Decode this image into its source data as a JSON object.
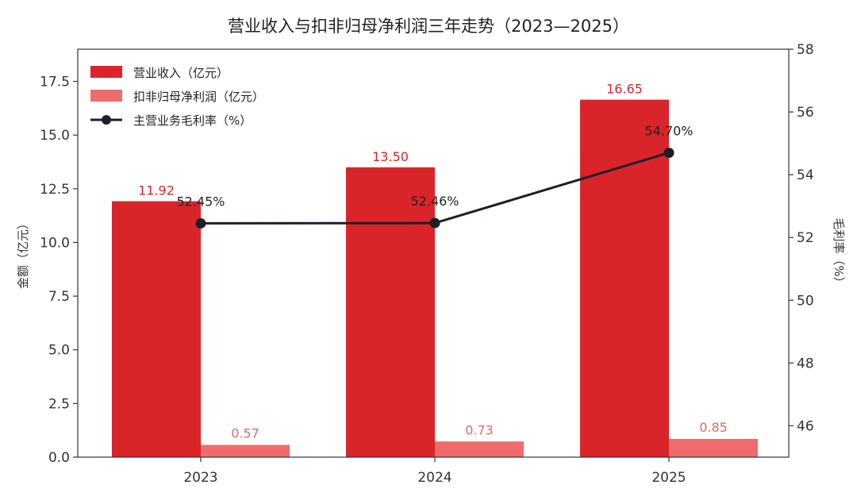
{
  "chart_data": {
    "type": "bar",
    "title": "营业收入与扣非归母净利润三年走势（2023—2025）",
    "categories": [
      "2023",
      "2024",
      "2025"
    ],
    "ylabel": "金额（亿元）",
    "y2label": "毛利率（%）",
    "ylim": [
      0,
      19
    ],
    "y2lim": [
      45,
      58
    ],
    "yticks": [
      "0.0",
      "2.5",
      "5.0",
      "7.5",
      "10.0",
      "12.5",
      "15.0",
      "17.5"
    ],
    "y2ticks": [
      "46",
      "48",
      "50",
      "52",
      "54",
      "56",
      "58"
    ],
    "legend_position": "top-left",
    "grid": false,
    "series": [
      {
        "name": "营业收入（亿元）",
        "kind": "bar",
        "axis": "left",
        "color": "#d9252a",
        "values": [
          11.92,
          13.5,
          16.65
        ],
        "labels": [
          "11.92",
          "13.50",
          "16.65"
        ]
      },
      {
        "name": "扣非归母净利润（亿元）",
        "kind": "bar",
        "axis": "left",
        "color": "#f06b6b",
        "values": [
          0.57,
          0.73,
          0.85
        ],
        "labels": [
          "0.57",
          "0.73",
          "0.85"
        ]
      },
      {
        "name": "主营业务毛利率（%）",
        "kind": "line",
        "axis": "right",
        "color": "#1c1f2a",
        "values": [
          52.45,
          52.46,
          54.7
        ],
        "labels": [
          "52.45%",
          "52.46%",
          "54.70%"
        ]
      }
    ]
  }
}
